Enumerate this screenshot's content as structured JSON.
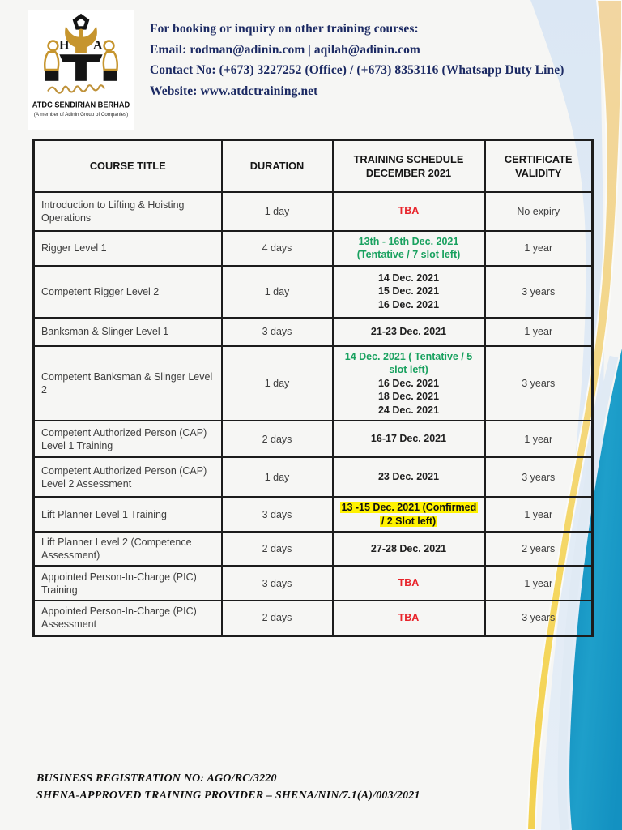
{
  "logo": {
    "org_name": "ATDC SENDIRIAN BERHAD",
    "org_subtitle": "(A member of Adinin Group of Companies)"
  },
  "header": {
    "booking_line": "For booking or inquiry on other training courses:",
    "email_line": "Email: rodman@adinin.com | aqilah@adinin.com",
    "contact_line": "Contact No: (+673) 3227252 (Office) / (+673) 8353116 (Whatsapp Duty Line)",
    "website_line": "Website: www.atdctraining.net"
  },
  "table": {
    "headers": [
      "COURSE TITLE",
      "DURATION",
      "TRAINING SCHEDULE\nDECEMBER 2021",
      "CERTIFICATE\nVALIDITY"
    ],
    "rows": [
      {
        "course": "Introduction to Lifting & Hoisting Operations",
        "duration": "1 day",
        "schedule": [
          {
            "text": "TBA",
            "style": "red"
          }
        ],
        "validity": "No expiry"
      },
      {
        "course": "Rigger Level 1",
        "duration": "4 days",
        "schedule": [
          {
            "text": "13th - 16th Dec. 2021",
            "style": "green"
          },
          {
            "text": "(Tentative / 7 slot left)",
            "style": "green"
          }
        ],
        "validity": "1 year"
      },
      {
        "course": "Competent Rigger Level 2",
        "duration": "1 day",
        "schedule": [
          {
            "text": "14 Dec. 2021",
            "style": "black"
          },
          {
            "text": "15 Dec. 2021",
            "style": "black"
          },
          {
            "text": "16 Dec. 2021",
            "style": "black"
          }
        ],
        "validity": "3 years"
      },
      {
        "course": "Banksman & Slinger Level 1",
        "duration": "3 days",
        "schedule": [
          {
            "text": "21-23 Dec. 2021",
            "style": "black"
          }
        ],
        "validity": "1 year"
      },
      {
        "course": "Competent Banksman & Slinger Level 2",
        "duration": "1 day",
        "schedule": [
          {
            "text": "14 Dec. 2021 ( Tentative / 5 slot left)",
            "style": "green"
          },
          {
            "text": "16 Dec. 2021",
            "style": "black"
          },
          {
            "text": "18 Dec. 2021",
            "style": "black"
          },
          {
            "text": "24 Dec. 2021",
            "style": "black"
          }
        ],
        "validity": "3 years"
      },
      {
        "course": "Competent Authorized Person (CAP) Level 1 Training",
        "duration": "2 days",
        "schedule": [
          {
            "text": "16-17 Dec. 2021",
            "style": "black"
          }
        ],
        "validity": "1 year"
      },
      {
        "course": "Competent Authorized Person (CAP) Level 2 Assessment",
        "duration": "1 day",
        "schedule": [
          {
            "text": "23 Dec. 2021",
            "style": "black"
          }
        ],
        "validity": "3 years"
      },
      {
        "course": "Lift Planner Level 1 Training",
        "duration": "3 days",
        "schedule": [
          {
            "text": "13 -15 Dec. 2021 (Confirmed / 2 Slot left)",
            "style": "highlight"
          }
        ],
        "validity": "1 year"
      },
      {
        "course": "Lift Planner Level 2 (Competence Assessment)",
        "duration": "2 days",
        "schedule": [
          {
            "text": "27-28 Dec. 2021",
            "style": "black"
          }
        ],
        "validity": "2 years"
      },
      {
        "course": "Appointed Person-In-Charge (PIC) Training",
        "duration": "3 days",
        "schedule": [
          {
            "text": "TBA",
            "style": "red"
          }
        ],
        "validity": "1 year"
      },
      {
        "course": "Appointed Person-In-Charge (PIC) Assessment",
        "duration": "2 days",
        "schedule": [
          {
            "text": "TBA",
            "style": "red"
          }
        ],
        "validity": "3 years"
      }
    ]
  },
  "footer": {
    "registration_line": "BUSINESS REGISTRATION NO: AGO/RC/3220",
    "shena_line": "SHENA-APPROVED TRAINING PROVIDER – SHENA/NIN/7.1(A)/003/2021"
  },
  "colors": {
    "navy_text": "#1c2a63",
    "schedule_red": "#e8232a",
    "schedule_green": "#19a15f",
    "highlight_yellow": "#fff200",
    "logo_gold": "#c6952e",
    "swoosh_teal": "#1595c5",
    "swoosh_pale_blue": "#dde8f4",
    "swoosh_sand": "#f2d6a2",
    "swoosh_yellow": "#f5d75e"
  }
}
